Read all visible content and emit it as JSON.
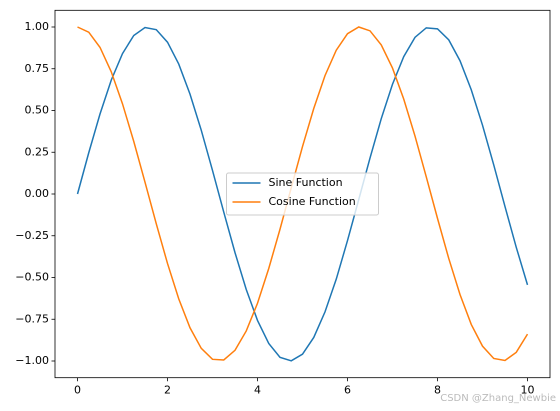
{
  "chart_data": {
    "type": "line",
    "x": [
      0,
      0.25,
      0.5,
      0.75,
      1,
      1.25,
      1.5,
      1.75,
      2,
      2.25,
      2.5,
      2.75,
      3,
      3.25,
      3.5,
      3.75,
      4,
      4.25,
      4.5,
      4.75,
      5,
      5.25,
      5.5,
      5.75,
      6,
      6.25,
      6.5,
      6.75,
      7,
      7.25,
      7.5,
      7.75,
      8,
      8.25,
      8.5,
      8.75,
      9,
      9.25,
      9.5,
      9.75,
      10
    ],
    "series": [
      {
        "name": "Sine Function",
        "color": "#1f77b4",
        "values": [
          0,
          0.247,
          0.479,
          0.682,
          0.841,
          0.949,
          0.997,
          0.984,
          0.909,
          0.778,
          0.598,
          0.382,
          0.141,
          -0.108,
          -0.351,
          -0.572,
          -0.757,
          -0.895,
          -0.978,
          -0.999,
          -0.959,
          -0.859,
          -0.706,
          -0.51,
          -0.279,
          -0.033,
          0.215,
          0.451,
          0.657,
          0.823,
          0.938,
          0.995,
          0.989,
          0.923,
          0.798,
          0.624,
          0.412,
          0.174,
          -0.075,
          -0.319,
          -0.544
        ]
      },
      {
        "name": "Cosine Function",
        "color": "#ff7f0e",
        "values": [
          1,
          0.969,
          0.878,
          0.732,
          0.54,
          0.315,
          0.071,
          -0.178,
          -0.416,
          -0.628,
          -0.801,
          -0.924,
          -0.99,
          -0.994,
          -0.936,
          -0.82,
          -0.654,
          -0.446,
          -0.211,
          0.038,
          0.284,
          0.512,
          0.709,
          0.861,
          0.96,
          1,
          0.977,
          0.893,
          0.754,
          0.568,
          0.347,
          0.103,
          -0.146,
          -0.386,
          -0.602,
          -0.781,
          -0.911,
          -0.985,
          -0.997,
          -0.948,
          -0.839
        ]
      }
    ],
    "xlim": [
      -0.5,
      10.5
    ],
    "ylim": [
      -1.1,
      1.1
    ],
    "xticks": [
      0,
      2,
      4,
      6,
      8,
      10
    ],
    "yticks": [
      {
        "value": -1,
        "label": "−1.00"
      },
      {
        "value": -0.75,
        "label": "−0.75"
      },
      {
        "value": -0.5,
        "label": "−0.50"
      },
      {
        "value": -0.25,
        "label": "−0.25"
      },
      {
        "value": 0,
        "label": "0.00"
      },
      {
        "value": 0.25,
        "label": "0.25"
      },
      {
        "value": 0.5,
        "label": "0.50"
      },
      {
        "value": 0.75,
        "label": "0.75"
      },
      {
        "value": 1,
        "label": "1.00"
      }
    ],
    "legend": "center",
    "watermark": "CSDN @Zhang_Newbie"
  }
}
